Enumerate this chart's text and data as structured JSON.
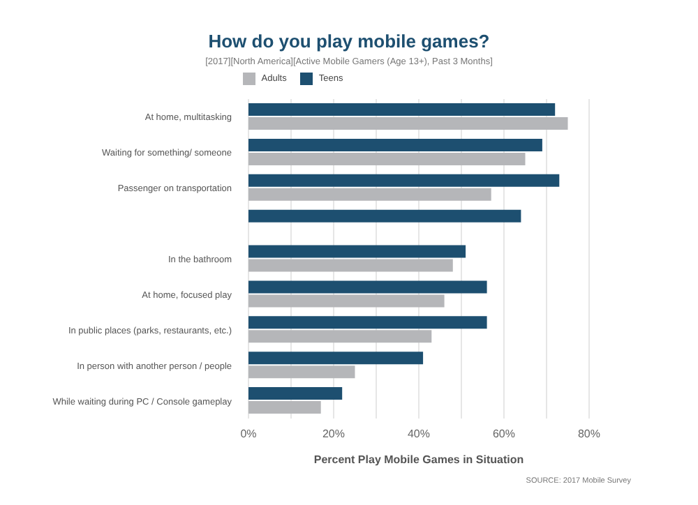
{
  "chart_data": {
    "type": "bar",
    "orientation": "horizontal",
    "title": "How do you play mobile games?",
    "subtitle": "[2017][North America][Active Mobile Gamers (Age 13+), Past 3 Months]",
    "categories": [
      "At home, multitasking",
      "Waiting for something/ someone",
      "Passenger on transportation",
      null,
      "In the bathroom",
      "At home, focused play",
      "In public places (parks, restaurants, etc.)",
      "In person with another person / people",
      "While waiting during PC / Console gameplay"
    ],
    "series": [
      {
        "name": "Teens",
        "color": "#1d4f70",
        "values": [
          72,
          69,
          73,
          64,
          51,
          56,
          56,
          41,
          22
        ]
      },
      {
        "name": "Adults",
        "color": "#b5b6b9",
        "values": [
          75,
          65,
          57,
          null,
          48,
          46,
          43,
          25,
          17
        ]
      }
    ],
    "xlabel": "Percent Play Mobile Games in Situation",
    "xlim": [
      0,
      80
    ],
    "xticks": [
      {
        "value": 0,
        "label": "0%"
      },
      {
        "value": 10,
        "label": null
      },
      {
        "value": 20,
        "label": "20%"
      },
      {
        "value": 30,
        "label": null
      },
      {
        "value": 40,
        "label": "40%"
      },
      {
        "value": 50,
        "label": null
      },
      {
        "value": 60,
        "label": "60%"
      },
      {
        "value": 70,
        "label": null
      },
      {
        "value": 80,
        "label": "80%"
      }
    ],
    "grid": "x",
    "legend": "top",
    "annotations": [
      "SOURCE: 2017 Mobile Survey"
    ]
  }
}
